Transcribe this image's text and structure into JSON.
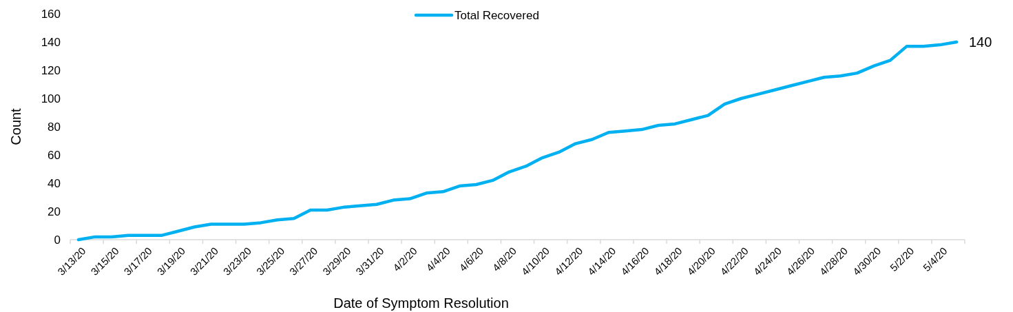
{
  "chart_data": {
    "type": "line",
    "xlabel": "Date of Symptom Resolution",
    "ylabel": "Count",
    "categories": [
      "3/13/20",
      null,
      "3/15/20",
      null,
      "3/17/20",
      null,
      "3/19/20",
      null,
      "3/21/20",
      null,
      "3/23/20",
      null,
      "3/25/20",
      null,
      "3/27/20",
      null,
      "3/29/20",
      null,
      "3/31/20",
      null,
      "4/2/20",
      null,
      "4/4/20",
      null,
      "4/6/20",
      null,
      "4/8/20",
      null,
      "4/10/20",
      null,
      "4/12/20",
      null,
      "4/14/20",
      null,
      "4/16/20",
      null,
      "4/18/20",
      null,
      "4/20/20",
      null,
      "4/22/20",
      null,
      "4/24/20",
      null,
      "4/26/20",
      null,
      "4/28/20",
      null,
      "4/30/20",
      null,
      "5/2/20",
      null,
      "5/4/20",
      null
    ],
    "series": [
      {
        "name": "Total Recovered",
        "color": "#00b0f0",
        "values": [
          0,
          2,
          2,
          3,
          3,
          3,
          6,
          9,
          11,
          11,
          11,
          12,
          14,
          15,
          21,
          21,
          23,
          24,
          25,
          28,
          29,
          33,
          34,
          38,
          39,
          42,
          48,
          52,
          58,
          62,
          68,
          71,
          76,
          77,
          78,
          81,
          82,
          85,
          88,
          96,
          100,
          103,
          106,
          109,
          112,
          115,
          116,
          118,
          123,
          127,
          137,
          137,
          138,
          140
        ],
        "value_labels": [
          null,
          null,
          null,
          null,
          null,
          null,
          null,
          null,
          null,
          null,
          null,
          null,
          null,
          null,
          null,
          null,
          null,
          null,
          null,
          null,
          null,
          null,
          null,
          null,
          null,
          null,
          null,
          null,
          null,
          null,
          null,
          null,
          null,
          null,
          null,
          null,
          null,
          null,
          null,
          null,
          null,
          null,
          null,
          null,
          null,
          null,
          null,
          null,
          null,
          null,
          null,
          null,
          null,
          "140"
        ]
      }
    ],
    "ylim": [
      0,
      160
    ],
    "yticks": [
      0,
      20,
      40,
      60,
      80,
      100,
      120,
      140,
      160
    ],
    "grid": false,
    "legend": "top",
    "marker": "none",
    "line_style": "solid"
  }
}
